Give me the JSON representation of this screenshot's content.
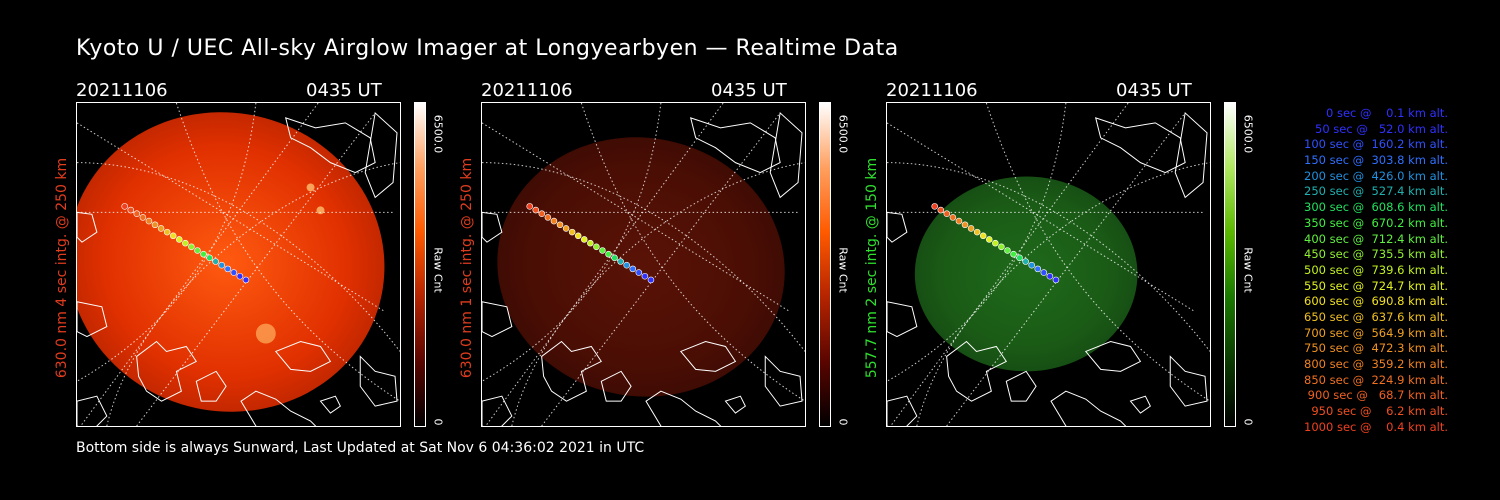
{
  "title": "Kyoto U / UEC All-sky Airglow Imager at Longyearbyen — Realtime Data",
  "footer": "Bottom side is always Sunward, Last Updated at Sat Nov  6 04:36:02 2021 in UTC",
  "panels": [
    {
      "date": "20211106",
      "time": "0435 UT",
      "ylabel": "630.0 nm 4 sec intg. @ 250 km",
      "ylabel_color": "#e03c1e",
      "cbar_max": "6500.0",
      "cbar_unit": "Raw Cnt",
      "cbar_min": "0",
      "cmap": [
        "#000000",
        "#5a0500",
        "#b52400",
        "#ff5a00",
        "#ffa060",
        "#ffffff"
      ],
      "intensity": "bright"
    },
    {
      "date": "20211106",
      "time": "0435 UT",
      "ylabel": "630.0 nm 1 sec intg. @ 250 km",
      "ylabel_color": "#e03c1e",
      "cbar_max": "6500.0",
      "cbar_unit": "Raw Cnt",
      "cbar_min": "0",
      "cmap": [
        "#000000",
        "#5a0500",
        "#b52400",
        "#ff5a00",
        "#ffa060",
        "#ffffff"
      ],
      "intensity": "dim"
    },
    {
      "date": "20211106",
      "time": "0435 UT",
      "ylabel": "557.7 nm 2 sec intg. @ 150 km",
      "ylabel_color": "#2ee02e",
      "cbar_max": "6500.0",
      "cbar_unit": "Raw Cnt",
      "cbar_min": "0",
      "cmap": [
        "#000000",
        "#0a3a00",
        "#1a7a00",
        "#5ab800",
        "#b0e860",
        "#ffffff"
      ],
      "intensity": "green"
    }
  ],
  "legend": [
    {
      "text": "   0 sec @    0.1 km alt.",
      "color": "#3030ff"
    },
    {
      "text": "  50 sec @   52.0 km alt.",
      "color": "#3030ff"
    },
    {
      "text": " 100 sec @  160.2 km alt.",
      "color": "#3050ff"
    },
    {
      "text": " 150 sec @  303.8 km alt.",
      "color": "#3070ff"
    },
    {
      "text": " 200 sec @  426.0 km alt.",
      "color": "#2090e0"
    },
    {
      "text": " 250 sec @  527.4 km alt.",
      "color": "#20b0b0"
    },
    {
      "text": " 300 sec @  608.6 km alt.",
      "color": "#20e060"
    },
    {
      "text": " 350 sec @  670.2 km alt.",
      "color": "#40f040"
    },
    {
      "text": " 400 sec @  712.4 km alt.",
      "color": "#60f040"
    },
    {
      "text": " 450 sec @  735.5 km alt.",
      "color": "#90f030"
    },
    {
      "text": " 500 sec @  739.6 km alt.",
      "color": "#c0f020"
    },
    {
      "text": " 550 sec @  724.7 km alt.",
      "color": "#e0f020"
    },
    {
      "text": " 600 sec @  690.8 km alt.",
      "color": "#f0e020"
    },
    {
      "text": " 650 sec @  637.6 km alt.",
      "color": "#f0c020"
    },
    {
      "text": " 700 sec @  564.9 km alt.",
      "color": "#f0a020"
    },
    {
      "text": " 750 sec @  472.3 km alt.",
      "color": "#f09020"
    },
    {
      "text": " 800 sec @  359.2 km alt.",
      "color": "#f08020"
    },
    {
      "text": " 850 sec @  224.9 km alt.",
      "color": "#f07020"
    },
    {
      "text": " 900 sec @   68.7 km alt.",
      "color": "#f06020"
    },
    {
      "text": " 950 sec @    6.2 km alt.",
      "color": "#f05020"
    },
    {
      "text": "1000 sec @    0.4 km alt.",
      "color": "#f04020"
    }
  ]
}
